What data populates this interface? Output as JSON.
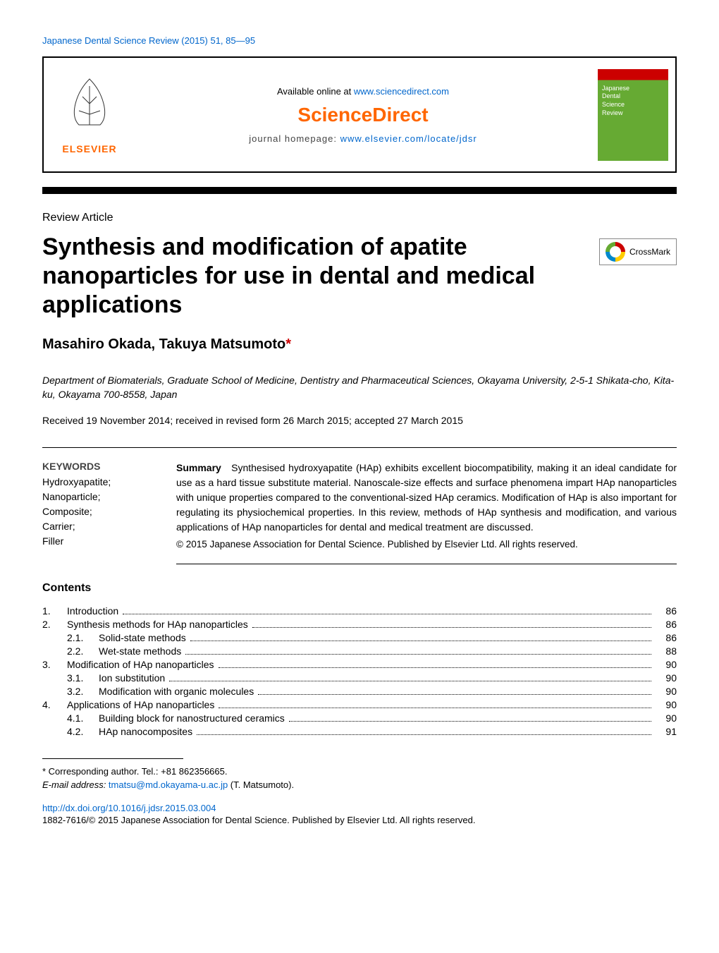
{
  "journal_reference": "Japanese Dental Science Review (2015) 51, 85—95",
  "header": {
    "available_text": "Available online at ",
    "available_url": "www.sciencedirect.com",
    "sciencedirect": "ScienceDirect",
    "homepage_text": "journal homepage: ",
    "homepage_url": "www.elsevier.com/locate/jdsr",
    "elsevier_label": "ELSEVIER",
    "cover_lines": [
      "Japanese",
      "Dental",
      "Science",
      "Review"
    ],
    "crossmark_label": "CrossMark"
  },
  "article_type": "Review Article",
  "title": "Synthesis and modification of apatite nanoparticles for use in dental and medical applications",
  "authors": "Masahiro Okada, Takuya Matsumoto",
  "corr_mark": "*",
  "affiliation": "Department of Biomaterials, Graduate School of Medicine, Dentistry and Pharmaceutical Sciences, Okayama University, 2-5-1 Shikata-cho, Kita-ku, Okayama 700-8558, Japan",
  "dates": "Received 19 November 2014; received in revised form 26 March 2015; accepted 27 March 2015",
  "keywords_title": "KEYWORDS",
  "keywords": "Hydroxyapatite;\nNanoparticle;\nComposite;\nCarrier;\nFiller",
  "summary_label": "Summary",
  "summary": "Synthesised hydroxyapatite (HAp) exhibits excellent biocompatibility, making it an ideal candidate for use as a hard tissue substitute material. Nanoscale-size effects and surface phenomena impart HAp nanoparticles with unique properties compared to the conventional-sized HAp ceramics. Modification of HAp is also important for regulating its physiochemical properties. In this review, methods of HAp synthesis and modification, and various applications of HAp nanoparticles for dental and medical treatment are discussed.",
  "copyright_line": "© 2015 Japanese Association for Dental Science. Published by Elsevier Ltd. All rights reserved.",
  "contents_title": "Contents",
  "toc": [
    {
      "num": "1.",
      "label": "Introduction",
      "page": "86",
      "level": 1
    },
    {
      "num": "2.",
      "label": "Synthesis methods for HAp nanoparticles",
      "page": "86",
      "level": 1
    },
    {
      "num": "2.1.",
      "label": "Solid-state methods",
      "page": "86",
      "level": 2
    },
    {
      "num": "2.2.",
      "label": "Wet-state methods",
      "page": "88",
      "level": 2
    },
    {
      "num": "3.",
      "label": "Modification of HAp nanoparticles",
      "page": "90",
      "level": 1
    },
    {
      "num": "3.1.",
      "label": "Ion substitution",
      "page": "90",
      "level": 2
    },
    {
      "num": "3.2.",
      "label": "Modification with organic molecules",
      "page": "90",
      "level": 2
    },
    {
      "num": "4.",
      "label": "Applications of HAp nanoparticles",
      "page": "90",
      "level": 1
    },
    {
      "num": "4.1.",
      "label": "Building block for nanostructured ceramics",
      "page": "90",
      "level": 2
    },
    {
      "num": "4.2.",
      "label": "HAp nanocomposites",
      "page": "91",
      "level": 2
    }
  ],
  "footnote": {
    "corr_text": "* Corresponding author. Tel.: +81 862356665.",
    "email_label": "E-mail address: ",
    "email": "tmatsu@md.okayama-u.ac.jp",
    "email_name": " (T. Matsumoto)."
  },
  "doi": "http://dx.doi.org/10.1016/j.jdsr.2015.03.004",
  "issn": "1882-7616/© 2015 Japanese Association for Dental Science. Published by Elsevier Ltd. All rights reserved.",
  "colors": {
    "link": "#0066cc",
    "elsevier_orange": "#ff6600",
    "corr_red": "#cc0000"
  }
}
